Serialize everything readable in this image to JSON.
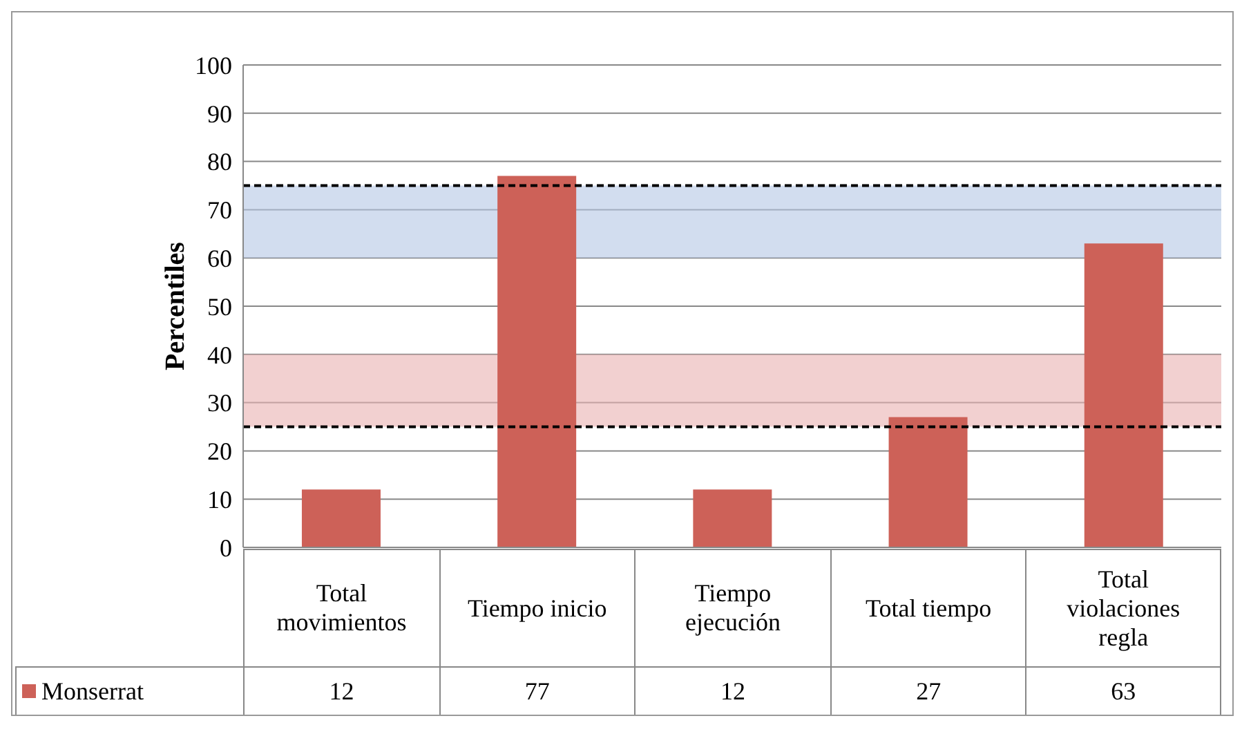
{
  "chart_data": {
    "type": "bar",
    "ylabel": "Percentiles",
    "categories": [
      "Total movimientos",
      "Tiempo inicio",
      "Tiempo ejecución",
      "Total tiempo",
      "Total violaciones regla"
    ],
    "series": [
      {
        "name": "Monserrat",
        "color": "#cd6158",
        "values": [
          12,
          77,
          12,
          27,
          63
        ]
      }
    ],
    "ylim": [
      0,
      100
    ],
    "yticks": [
      0,
      10,
      20,
      30,
      40,
      50,
      60,
      70,
      80,
      90,
      100
    ],
    "grid": "y",
    "legend": "bottom",
    "data_labels": true,
    "ref_lines": [
      {
        "axis": "y",
        "value": 75,
        "line_style": "dashed",
        "color": "#000000"
      },
      {
        "axis": "y",
        "value": 25,
        "line_style": "dashed",
        "color": "#000000"
      }
    ],
    "bands": [
      {
        "axis": "y",
        "from": 60,
        "to": 75,
        "color": "#b4c6e4"
      },
      {
        "axis": "y",
        "from": 25,
        "to": 40,
        "color": "#eab0b0"
      }
    ]
  }
}
